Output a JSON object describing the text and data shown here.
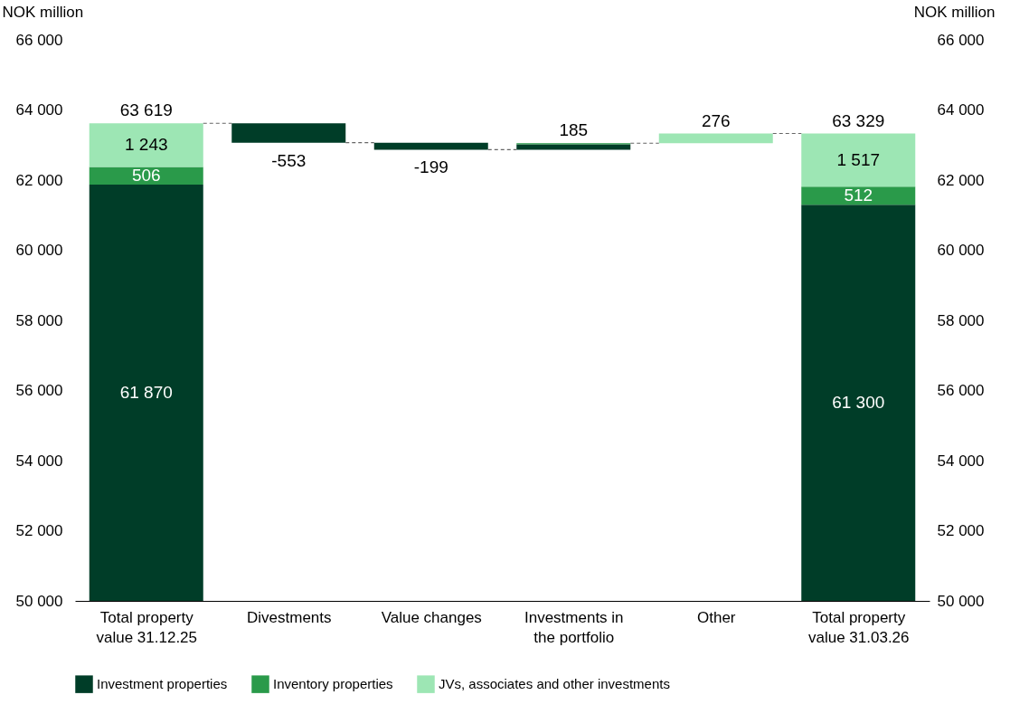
{
  "chart_data": {
    "type": "bar",
    "ylabel": "NOK million",
    "y2label": "NOK million",
    "categories": [
      "Total property value 31.12.25",
      "Divestments",
      "Value changes",
      "Investments in the portfolio",
      "Other",
      "Total property value 31.03.26"
    ],
    "series": [
      {
        "name": "Investment properties",
        "color": "#003d28",
        "values": [
          61870,
          -553,
          -199,
          155,
          null,
          61300
        ],
        "base": [
          null,
          63619,
          63066,
          62867,
          null,
          null
        ],
        "value_labels": [
          "61 870",
          "-553",
          "-199",
          null,
          null,
          "61 300"
        ]
      },
      {
        "name": "Inventory properties",
        "color": "#2a9a4a",
        "values": [
          506,
          null,
          null,
          30,
          null,
          512
        ],
        "base": [
          61870,
          null,
          null,
          63022,
          null,
          61300
        ],
        "value_labels": [
          "506",
          null,
          null,
          null,
          null,
          "512"
        ]
      },
      {
        "name": "JVs, associates and other investments",
        "color": "#9de6b4",
        "values": [
          1243,
          null,
          null,
          null,
          276,
          1517
        ],
        "base": [
          62376,
          null,
          null,
          null,
          63053,
          61812
        ],
        "value_labels": [
          "1 243",
          null,
          null,
          null,
          "276",
          "1 517"
        ]
      }
    ],
    "totals": [
      "63 619",
      null,
      null,
      "185",
      null,
      "63 329"
    ],
    "ylim": [
      50000,
      66000
    ],
    "yticks": [
      {
        "value": 50000,
        "label": "50 000"
      },
      {
        "value": 52000,
        "label": "52 000"
      },
      {
        "value": 54000,
        "label": "54 000"
      },
      {
        "value": 56000,
        "label": "56 000"
      },
      {
        "value": 58000,
        "label": "58 000"
      },
      {
        "value": 60000,
        "label": "60 000"
      },
      {
        "value": 62000,
        "label": "62 000"
      },
      {
        "value": 64000,
        "label": "64 000"
      },
      {
        "value": 66000,
        "label": "66 000"
      }
    ],
    "y2lim": [
      50000,
      66000
    ],
    "y2ticks": [
      {
        "value": 50000,
        "label": "50 000"
      },
      {
        "value": 52000,
        "label": "52 000"
      },
      {
        "value": 54000,
        "label": "54 000"
      },
      {
        "value": 56000,
        "label": "56 000"
      },
      {
        "value": 58000,
        "label": "58 000"
      },
      {
        "value": 60000,
        "label": "60 000"
      },
      {
        "value": 62000,
        "label": "62 000"
      },
      {
        "value": 64000,
        "label": "64 000"
      },
      {
        "value": 66000,
        "label": "66 000"
      }
    ],
    "legend": "bottom"
  }
}
